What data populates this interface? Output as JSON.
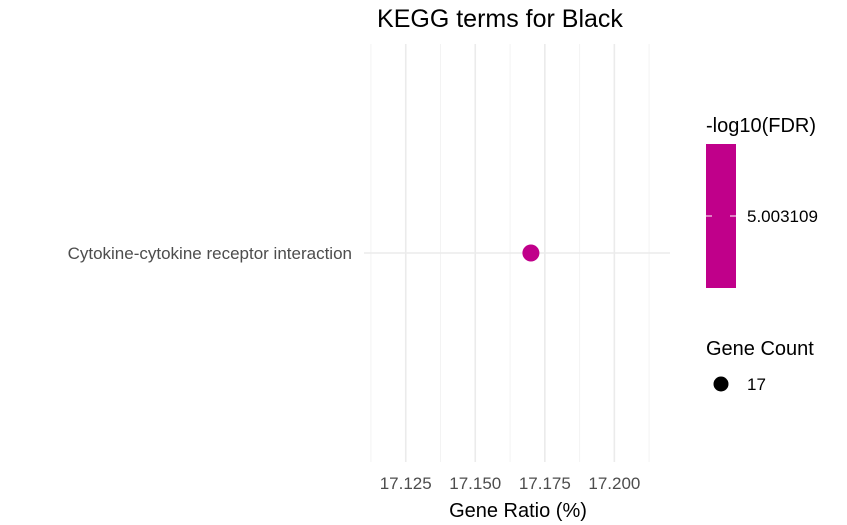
{
  "chart_data": {
    "type": "scatter",
    "title": "KEGG terms for Black",
    "xlabel": "Gene Ratio (%)",
    "ylabel": "",
    "xlim": [
      17.11,
      17.22
    ],
    "x_ticks": [
      17.125,
      17.15,
      17.175,
      17.2
    ],
    "x_tick_labels": [
      "17.125",
      "17.150",
      "17.175",
      "17.200"
    ],
    "categories": [
      "Cytokine-cytokine receptor interaction"
    ],
    "points": [
      {
        "term": "Cytokine-cytokine receptor interaction",
        "x": 17.17,
        "neg_log10_fdr": 5.003109,
        "gene_count": 17,
        "color": "#c0008a"
      }
    ],
    "grid": true,
    "legend_position": "right",
    "legends": {
      "color": {
        "title": "-log10(FDR)",
        "label": "5.003109",
        "color": "#c0008a"
      },
      "size": {
        "title": "Gene Count",
        "label": "17"
      }
    }
  }
}
